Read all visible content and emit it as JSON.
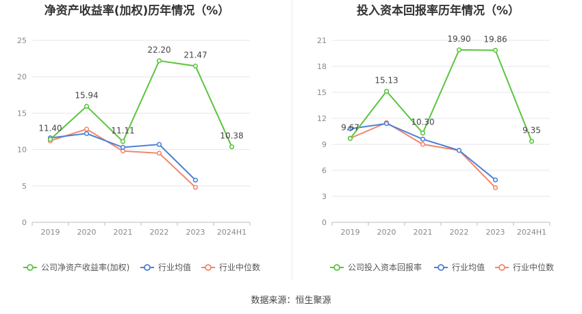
{
  "colors": {
    "company": "#5ac43d",
    "industry_avg": "#4a7fd6",
    "industry_median": "#f0866a",
    "grid": "#e4e4ee",
    "axis_text": "#888888",
    "label_text": "#444444"
  },
  "source_text": "数据来源：恒生聚源",
  "chart_data": [
    {
      "type": "line",
      "title": "净资产收益率(加权)历年情况（%）",
      "categories": [
        "2019",
        "2020",
        "2021",
        "2022",
        "2023",
        "2024H1"
      ],
      "ylim": [
        0,
        25
      ],
      "yticks": [
        0,
        5,
        10,
        15,
        20,
        25
      ],
      "grid": true,
      "legend_position": "bottom",
      "series": [
        {
          "name": "公司净资产收益率(加权)",
          "key": "company",
          "values": [
            11.4,
            15.94,
            11.11,
            22.2,
            21.47,
            10.38
          ],
          "labels": [
            "11.40",
            "15.94",
            "11.11",
            "22.20",
            "21.47",
            "10.38"
          ]
        },
        {
          "name": "行业均值",
          "key": "industry_avg",
          "values": [
            11.6,
            12.2,
            10.3,
            10.7,
            5.8,
            null
          ]
        },
        {
          "name": "行业中位数",
          "key": "industry_median",
          "values": [
            11.2,
            12.8,
            9.8,
            9.5,
            4.8,
            null
          ]
        }
      ]
    },
    {
      "type": "line",
      "title": "投入资本回报率历年情况（%）",
      "categories": [
        "2019",
        "2020",
        "2021",
        "2022",
        "2023",
        "2024H1"
      ],
      "ylim": [
        0,
        21
      ],
      "yticks": [
        0,
        3,
        6,
        9,
        12,
        15,
        18,
        21
      ],
      "grid": true,
      "legend_position": "bottom",
      "series": [
        {
          "name": "公司投入资本回报率",
          "key": "company",
          "values": [
            9.67,
            15.13,
            10.3,
            19.9,
            19.86,
            9.35
          ],
          "labels": [
            "9.67",
            "15.13",
            "10.30",
            "19.90",
            "19.86",
            "9.35"
          ]
        },
        {
          "name": "行业均值",
          "key": "industry_avg",
          "values": [
            10.8,
            11.4,
            9.6,
            8.3,
            4.9,
            null
          ]
        },
        {
          "name": "行业中位数",
          "key": "industry_median",
          "values": [
            9.7,
            11.5,
            9.0,
            8.3,
            4.0,
            null
          ]
        }
      ]
    }
  ]
}
